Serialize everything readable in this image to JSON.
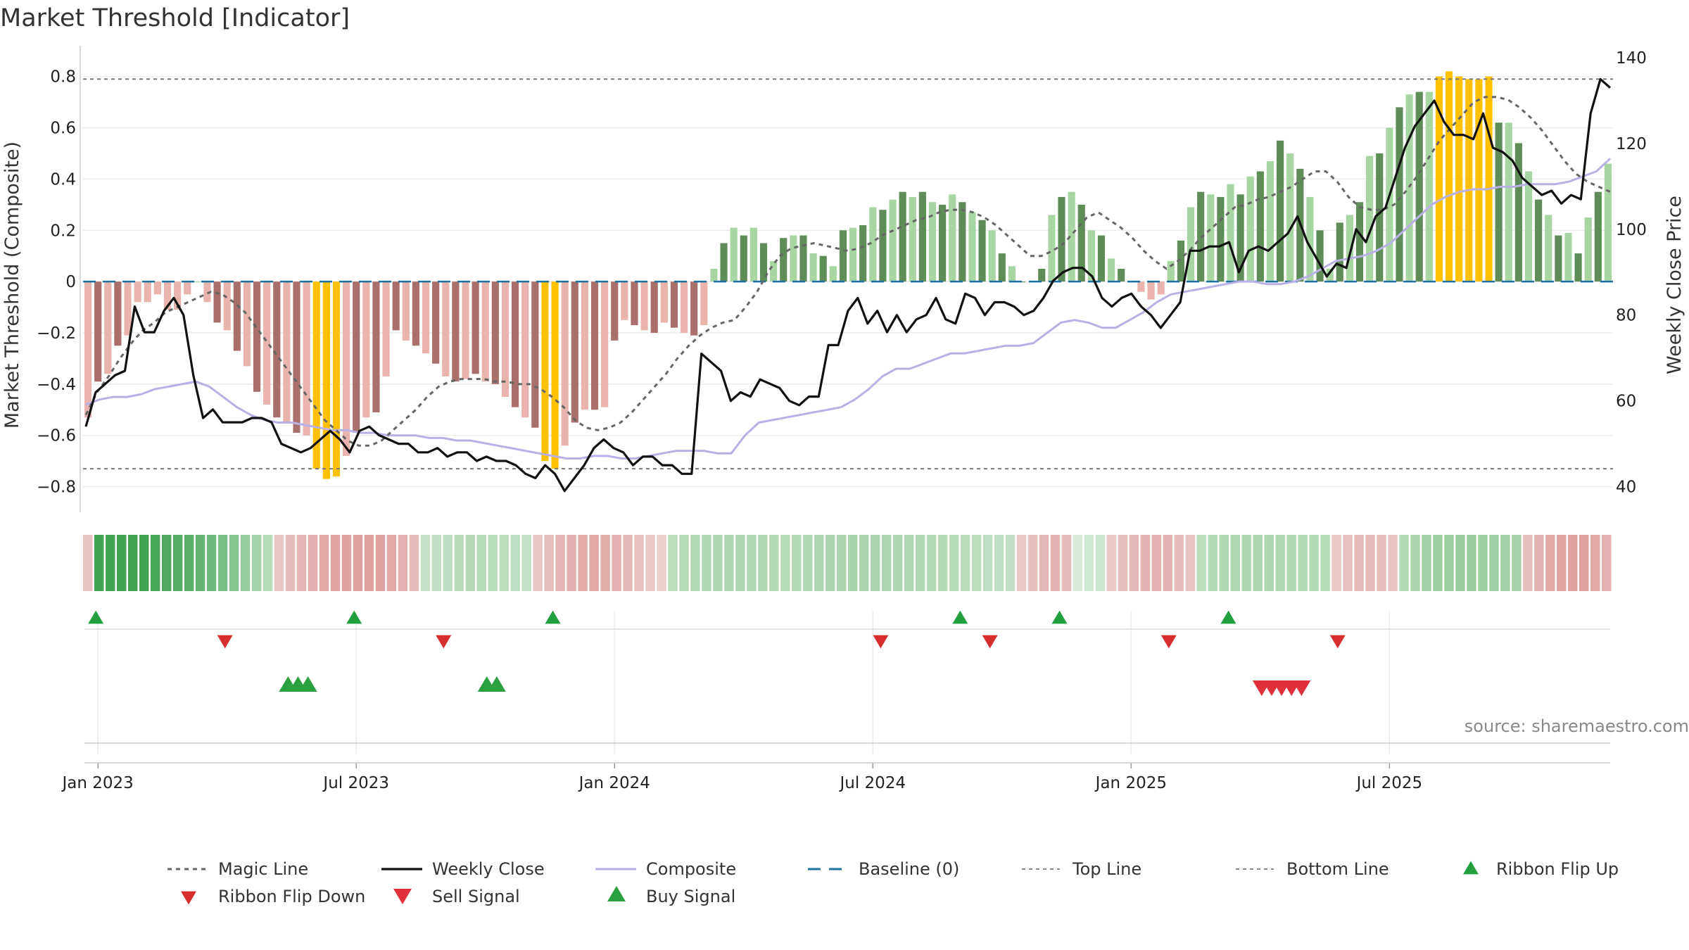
{
  "title": "Market Threshold [Indicator]",
  "source": "source: sharemaestro.com",
  "chart_data": {
    "type": "bar",
    "ylabel_left": "Market Threshold (Composite)",
    "ylabel_right": "Weekly Close Price",
    "left_ticks": [
      "0.8",
      "0.6",
      "0.4",
      "0.2",
      "0",
      "−0.2",
      "−0.4",
      "−0.6",
      "−0.8"
    ],
    "left_tick_values": [
      0.8,
      0.6,
      0.4,
      0.2,
      0,
      -0.2,
      -0.4,
      -0.6,
      -0.8
    ],
    "right_ticks": [
      "140",
      "120",
      "100",
      "80",
      "60",
      "40"
    ],
    "right_tick_values": [
      140,
      120,
      100,
      80,
      60,
      40
    ],
    "ylim_left": [
      -0.9,
      0.92
    ],
    "ylim_right": [
      40,
      140
    ],
    "top_line": 0.79,
    "bottom_line": -0.73,
    "x_ticks": [
      "Jan 2023",
      "Jul 2023",
      "Jan 2024",
      "Jul 2024",
      "Jan 2025",
      "Jul 2025"
    ],
    "x_tick_week_index": [
      1,
      27,
      53,
      79,
      105,
      131
    ],
    "composite_weekly": [
      -0.53,
      -0.39,
      -0.36,
      -0.25,
      -0.21,
      -0.08,
      -0.08,
      -0.05,
      -0.11,
      -0.11,
      -0.05,
      0,
      -0.08,
      -0.16,
      -0.19,
      -0.27,
      -0.33,
      -0.43,
      -0.48,
      -0.53,
      -0.55,
      -0.59,
      -0.6,
      -0.73,
      -0.77,
      -0.76,
      -0.68,
      -0.59,
      -0.53,
      -0.51,
      -0.37,
      -0.19,
      -0.23,
      -0.25,
      -0.28,
      -0.32,
      -0.37,
      -0.39,
      -0.38,
      -0.36,
      -0.39,
      -0.4,
      -0.45,
      -0.49,
      -0.53,
      -0.57,
      -0.7,
      -0.73,
      -0.64,
      -0.55,
      -0.5,
      -0.5,
      -0.49,
      -0.23,
      -0.15,
      -0.17,
      -0.19,
      -0.2,
      -0.16,
      -0.18,
      -0.2,
      -0.21,
      -0.17,
      0.05,
      0.15,
      0.21,
      0.18,
      0.21,
      0.15,
      0.08,
      0.17,
      0.18,
      0.18,
      0.11,
      0.1,
      0.06,
      0.2,
      0.21,
      0.22,
      0.29,
      0.28,
      0.32,
      0.35,
      0.33,
      0.35,
      0.31,
      0.3,
      0.34,
      0.31,
      0.27,
      0.24,
      0.2,
      0.11,
      0.06,
      0,
      0,
      0.05,
      0.26,
      0.33,
      0.35,
      0.3,
      0.2,
      0.18,
      0.09,
      0.05,
      0,
      -0.04,
      -0.07,
      -0.05,
      0.08,
      0.16,
      0.29,
      0.35,
      0.34,
      0.33,
      0.38,
      0.34,
      0.41,
      0.43,
      0.47,
      0.55,
      0.5,
      0.44,
      0.33,
      0.2,
      0.05,
      0.23,
      0.26,
      0.31,
      0.49,
      0.5,
      0.6,
      0.68,
      0.73,
      0.74,
      0.74,
      0.8,
      0.82,
      0.8,
      0.79,
      0.79,
      0.8,
      0.62,
      0.62,
      0.54,
      0.43,
      0.32,
      0.26,
      0.18,
      0.19,
      0.11,
      0.25,
      0.35,
      0.46
    ],
    "magic_line": [
      -0.52,
      -0.43,
      -0.37,
      -0.3,
      -0.24,
      -0.19,
      -0.16,
      -0.12,
      -0.1,
      -0.08,
      -0.06,
      -0.04,
      -0.05,
      -0.08,
      -0.12,
      -0.18,
      -0.24,
      -0.3,
      -0.36,
      -0.42,
      -0.48,
      -0.54,
      -0.58,
      -0.62,
      -0.64,
      -0.64,
      -0.62,
      -0.58,
      -0.54,
      -0.5,
      -0.45,
      -0.41,
      -0.39,
      -0.38,
      -0.38,
      -0.38,
      -0.39,
      -0.39,
      -0.4,
      -0.4,
      -0.42,
      -0.45,
      -0.49,
      -0.54,
      -0.57,
      -0.58,
      -0.57,
      -0.55,
      -0.51,
      -0.46,
      -0.41,
      -0.36,
      -0.3,
      -0.25,
      -0.21,
      -0.18,
      -0.16,
      -0.15,
      -0.1,
      -0.04,
      0.04,
      0.1,
      0.13,
      0.14,
      0.15,
      0.14,
      0.13,
      0.12,
      0.13,
      0.15,
      0.18,
      0.2,
      0.22,
      0.24,
      0.25,
      0.27,
      0.28,
      0.28,
      0.27,
      0.25,
      0.22,
      0.18,
      0.14,
      0.1,
      0.1,
      0.12,
      0.15,
      0.2,
      0.25,
      0.27,
      0.24,
      0.21,
      0.17,
      0.12,
      0.08,
      0.05,
      0.08,
      0.12,
      0.17,
      0.21,
      0.25,
      0.29,
      0.3,
      0.32,
      0.33,
      0.35,
      0.37,
      0.4,
      0.43,
      0.43,
      0.39,
      0.33,
      0.29,
      0.28,
      0.28,
      0.3,
      0.35,
      0.41,
      0.48,
      0.55,
      0.6,
      0.65,
      0.7,
      0.72,
      0.72,
      0.71,
      0.68,
      0.64,
      0.59,
      0.53,
      0.47,
      0.42,
      0.39,
      0.37,
      0.35
    ],
    "composite_smooth": [
      -0.48,
      -0.46,
      -0.45,
      -0.45,
      -0.44,
      -0.42,
      -0.41,
      -0.4,
      -0.39,
      -0.41,
      -0.45,
      -0.49,
      -0.52,
      -0.54,
      -0.55,
      -0.55,
      -0.56,
      -0.57,
      -0.58,
      -0.58,
      -0.59,
      -0.59,
      -0.6,
      -0.6,
      -0.6,
      -0.61,
      -0.61,
      -0.62,
      -0.62,
      -0.63,
      -0.64,
      -0.65,
      -0.66,
      -0.67,
      -0.68,
      -0.69,
      -0.69,
      -0.68,
      -0.68,
      -0.69,
      -0.69,
      -0.68,
      -0.67,
      -0.66,
      -0.66,
      -0.66,
      -0.67,
      -0.67,
      -0.6,
      -0.55,
      -0.54,
      -0.53,
      -0.52,
      -0.51,
      -0.5,
      -0.49,
      -0.46,
      -0.42,
      -0.37,
      -0.34,
      -0.34,
      -0.32,
      -0.3,
      -0.28,
      -0.28,
      -0.27,
      -0.26,
      -0.25,
      -0.25,
      -0.24,
      -0.2,
      -0.16,
      -0.15,
      -0.16,
      -0.18,
      -0.18,
      -0.15,
      -0.12,
      -0.08,
      -0.05,
      -0.04,
      -0.03,
      -0.02,
      -0.01,
      0,
      0,
      -0.01,
      -0.01,
      0,
      0.02,
      0.05,
      0.08,
      0.09,
      0.1,
      0.12,
      0.15,
      0.2,
      0.25,
      0.3,
      0.33,
      0.35,
      0.36,
      0.36,
      0.37,
      0.37,
      0.38,
      0.38,
      0.38,
      0.39,
      0.41,
      0.43,
      0.48
    ],
    "weekly_close_price": [
      54,
      62,
      64,
      66,
      67,
      82,
      76,
      76,
      81,
      84,
      80,
      66,
      56,
      58,
      55,
      55,
      55,
      56,
      56,
      55,
      50,
      49,
      48,
      49,
      51,
      53,
      51,
      48,
      53,
      54,
      52,
      51,
      50,
      50,
      48,
      48,
      49,
      47,
      48,
      48,
      46,
      47,
      46,
      46,
      45,
      43,
      42,
      45,
      43,
      39,
      42,
      45,
      49,
      51,
      49,
      48,
      45,
      47,
      47,
      45,
      45,
      43,
      43,
      71,
      69,
      67,
      60,
      62,
      61,
      65,
      64,
      63,
      60,
      59,
      61,
      61,
      73,
      73,
      81,
      84,
      78,
      81,
      76,
      80,
      76,
      79,
      80,
      84,
      79,
      78,
      85,
      84,
      80,
      83,
      83,
      82,
      80,
      81,
      84,
      88,
      90,
      91,
      91,
      89,
      84,
      82,
      84,
      85,
      82,
      80,
      77,
      80,
      83,
      95,
      95,
      96,
      96,
      97,
      90,
      95,
      96,
      95,
      97,
      99,
      103,
      97,
      93,
      89,
      92,
      91,
      100,
      97,
      103,
      105,
      112,
      119,
      124,
      127,
      130,
      125,
      122,
      122,
      121,
      127,
      119,
      118,
      116,
      112,
      110,
      108,
      109,
      106,
      108,
      107,
      127,
      135,
      133
    ],
    "ribbon": [
      "#e7c3c1",
      "#41a352",
      "#41a352",
      "#41a352",
      "#41a352",
      "#41a352",
      "#48a85a",
      "#4ea95e",
      "#55ae65",
      "#5aaf69",
      "#64b372",
      "#6eb97b",
      "#7abf85",
      "#86c48f",
      "#96cc9e",
      "#a3d3aa",
      "#b4dbb9",
      "#e8c4c3",
      "#e6bcbb",
      "#e4b6b5",
      "#e2afae",
      "#e0aaa8",
      "#df a5a3",
      "#dea3a1",
      "#dda19f",
      "#dea3a1",
      "#dea3a1",
      "#e0a9a7",
      "#e3b2b0",
      "#e6bcba",
      "#c4e0c7",
      "#c0dfc4",
      "#bbdcbf",
      "#b7dabb",
      "#b5d9b8",
      "#b4dbb9",
      "#b6dcba",
      "#b9ddbd",
      "#bddfc1",
      "#c2e1c5",
      "#e8c6c5",
      "#e5bdbb",
      "#e3b5b3",
      "#e1afad",
      "#e0aba9",
      "#e0a9a7",
      "#e1adab",
      "#e3b2b0",
      "#e5b9b7",
      "#e7c0be",
      "#e9c7c6",
      "#ebcfcd",
      "#b9ddbd",
      "#b5dbb9",
      "#b1d9b5",
      "#aed7b2",
      "#acd6b0",
      "#abd6af",
      "#acd6b0",
      "#aed7b2",
      "#b0d8b4",
      "#b3d9b7",
      "#b6dbb9",
      "#b2d9b6",
      "#aed7b2",
      "#acd6b0",
      "#aad5ae",
      "#a9d4ad",
      "#a8d4ac",
      "#a9d4ad",
      "#aad5ae",
      "#abd6af",
      "#acd6b0",
      "#aed7b2",
      "#afd8b3",
      "#b1d9b5",
      "#b3d9b7",
      "#b5dbb9",
      "#b8dcbb",
      "#baddbe",
      "#bddec1",
      "#bfdfc3",
      "#c1e0c5",
      "#e9c8c6",
      "#e6bfbd",
      "#e4b8b6",
      "#e3b4b2",
      "#e5bab8",
      "#d5ead8",
      "#cfe7d2",
      "#cce6cf",
      "#e9c8c6",
      "#e6bfbd",
      "#e4b8b6",
      "#e3b4b2",
      "#e2b1af",
      "#e3b4b2",
      "#e5bab8",
      "#e8c2c0",
      "#b9ddbd",
      "#b3dab7",
      "#b0d8b4",
      "#aed7b2",
      "#add7b1",
      "#acd6b0",
      "#add7b1",
      "#aed7b2",
      "#afd8b3",
      "#b1d9b5",
      "#b3d9b7",
      "#b5dbb9",
      "#e9c8c6",
      "#e6c0be",
      "#e5bbb9",
      "#e5bab8",
      "#e6bdbb",
      "#e8c3c1",
      "#b3dab7",
      "#a9d4ad",
      "#a2d1a7",
      "#9dcea2",
      "#9acda0",
      "#98cc9e",
      "#99cd9f",
      "#9bcea1",
      "#9ecfa4",
      "#a1d0a6",
      "#a5d2aa",
      "#e6bfbd",
      "#e3b4b2",
      "#e0aaa8",
      "#df a5a3",
      "#dea3a1",
      "#dea3a1",
      "#e0a8a6",
      "#e3b2b0"
    ],
    "ribbon_flip_up_weeks": [
      1,
      27,
      47,
      88,
      98,
      115
    ],
    "ribbon_flip_down_weeks": [
      14,
      36,
      80,
      91,
      109,
      126
    ],
    "buy_signal_weeks": [
      20,
      21,
      22,
      40,
      41
    ],
    "sell_signal_weeks": [
      118,
      119,
      120,
      121,
      122
    ],
    "legend": [
      {
        "label": "Magic Line"
      },
      {
        "label": "Weekly Close"
      },
      {
        "label": "Composite"
      },
      {
        "label": "Baseline (0)"
      },
      {
        "label": "Top Line"
      },
      {
        "label": "Bottom Line"
      },
      {
        "label": "Ribbon Flip Up"
      },
      {
        "label": "Ribbon Flip Down"
      },
      {
        "label": "Sell Signal"
      },
      {
        "label": "Buy Signal"
      }
    ],
    "colors": {
      "neg_light": "#e8b4ad",
      "neg_dark": "#a86f6c",
      "pos_light": "#a8d6a2",
      "pos_dark": "#5f8d58",
      "extreme": "#ffc000",
      "magic": "#666666",
      "close": "#111111",
      "composite_line": "#b9b1e6",
      "baseline": "#1f6f9f",
      "flip_up": "#22a040",
      "flip_down": "#d62e2e",
      "buy": "#2ca040",
      "sell": "#e0303c"
    }
  }
}
